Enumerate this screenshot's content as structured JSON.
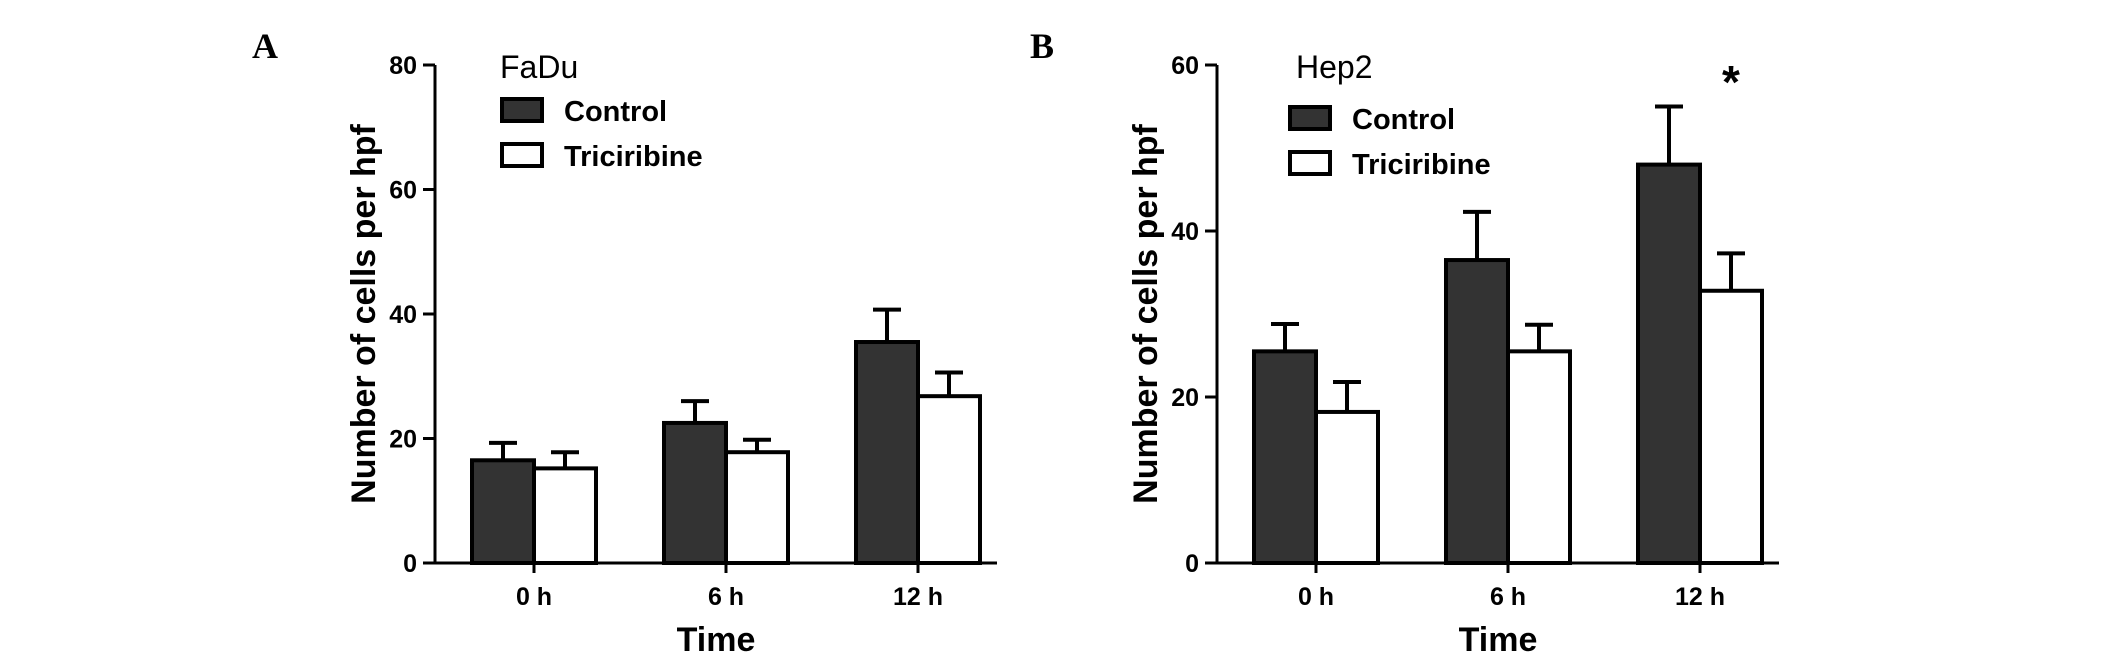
{
  "colors": {
    "control": "#333333",
    "triciribine": "#ffffff",
    "stroke": "#000000"
  },
  "chart_data": [
    {
      "panel": "A",
      "type": "bar",
      "title": "FaDu",
      "xlabel": "Time",
      "ylabel": "Number of cells per hpf",
      "ylim": [
        0,
        80
      ],
      "yticks": [
        0,
        20,
        40,
        60,
        80
      ],
      "categories": [
        "0 h",
        "6 h",
        "12 h"
      ],
      "legend_position": "top-left",
      "series": [
        {
          "name": "Control",
          "values": [
            16.5,
            22.5,
            35.5
          ],
          "errors": [
            2.8,
            3.5,
            5.2
          ]
        },
        {
          "name": "Triciribine",
          "values": [
            15.2,
            17.8,
            26.8
          ],
          "errors": [
            2.6,
            2.0,
            3.8
          ]
        }
      ],
      "annotations": []
    },
    {
      "panel": "B",
      "type": "bar",
      "title": "Hep2",
      "xlabel": "Time",
      "ylabel": "Number of cells per hpf",
      "ylim": [
        0,
        60
      ],
      "yticks": [
        0,
        20,
        40,
        60
      ],
      "categories": [
        "0 h",
        "6 h",
        "12 h"
      ],
      "legend_position": "top-left",
      "series": [
        {
          "name": "Control",
          "values": [
            25.5,
            36.5,
            48
          ],
          "errors": [
            3.3,
            5.8,
            7.0
          ]
        },
        {
          "name": "Triciribine",
          "values": [
            18.2,
            25.5,
            32.8
          ],
          "errors": [
            3.6,
            3.2,
            4.5
          ]
        }
      ],
      "annotations": [
        {
          "text": "*",
          "category": "12 h"
        }
      ]
    }
  ]
}
